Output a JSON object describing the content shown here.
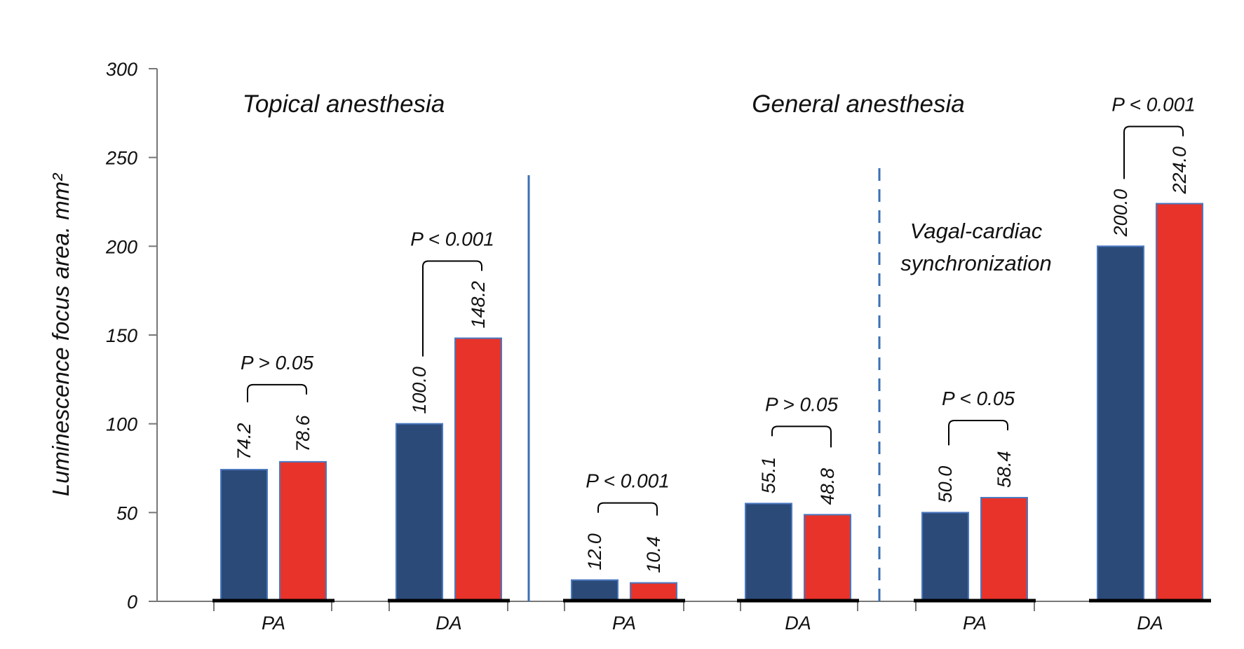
{
  "chart_data": {
    "type": "bar",
    "ylabel": "Luminescence focus area. mm²",
    "ylim": [
      0,
      300
    ],
    "yticks": [
      0,
      50,
      100,
      150,
      200,
      250,
      300
    ],
    "grid": false,
    "colors": {
      "series_a": "#2b4a78",
      "series_b": "#e8332a",
      "divider": "#3a6fb5"
    },
    "group_labels": {
      "topical": "Topical anesthesia",
      "general": "General anesthesia"
    },
    "sub_label": [
      "Vagal-cardiac",
      "synchronization"
    ],
    "categories": [
      "PA",
      "DA",
      "PA",
      "DA",
      "PA",
      "DA"
    ],
    "pairs": [
      {
        "values": [
          74.2,
          78.6
        ],
        "labels": [
          "74.2",
          "78.6"
        ],
        "p": "P > 0.05"
      },
      {
        "values": [
          100.0,
          148.2
        ],
        "labels": [
          "100.0",
          "148.2"
        ],
        "p": "P < 0.001"
      },
      {
        "values": [
          12.0,
          10.4
        ],
        "labels": [
          "12.0",
          "10.4"
        ],
        "p": "P < 0.001"
      },
      {
        "values": [
          55.1,
          48.8
        ],
        "labels": [
          "55.1",
          "48.8"
        ],
        "p": "P > 0.05"
      },
      {
        "values": [
          50.0,
          58.4
        ],
        "labels": [
          "50.0",
          "58.4"
        ],
        "p": "P < 0.05"
      },
      {
        "values": [
          200.0,
          224.0
        ],
        "labels": [
          "200.0",
          "224.0"
        ],
        "p": "P < 0.001"
      }
    ]
  }
}
